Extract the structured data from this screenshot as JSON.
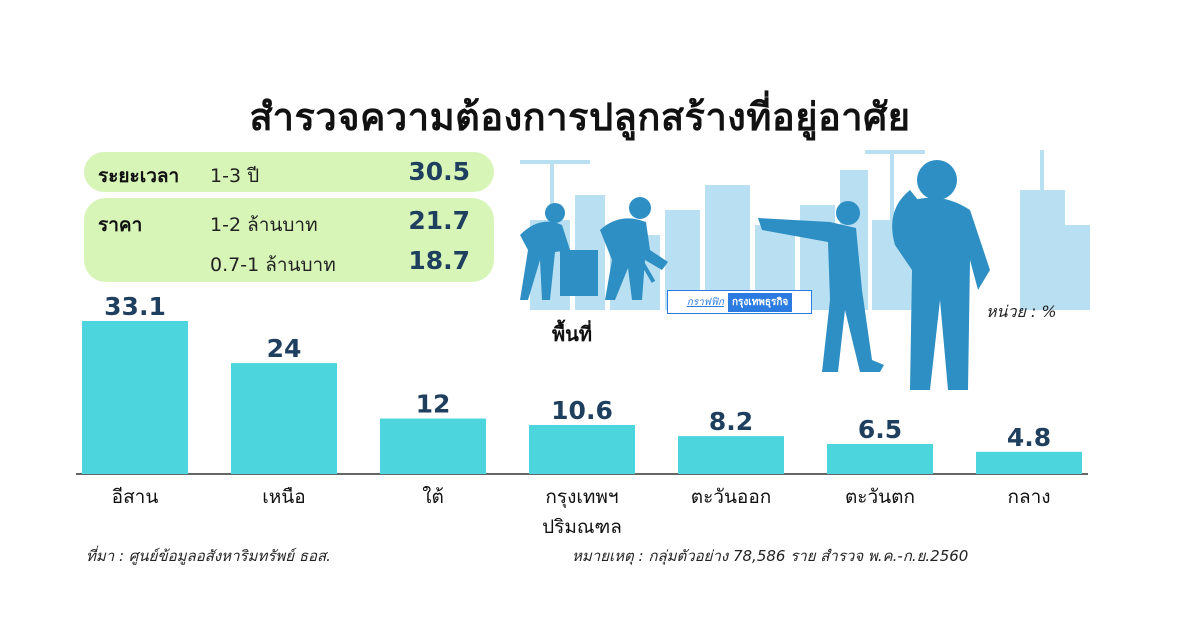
{
  "title": "สำรวจความต้องการปลูกสร้างที่อยู่อาศัย",
  "period": {
    "label": "ระยะเวลา",
    "desc": "1-3 ปี",
    "value": "30.5"
  },
  "price": {
    "label": "ราคา",
    "rows": [
      {
        "desc": "1-2  ล้านบาท",
        "value": "21.7"
      },
      {
        "desc": "0.7-1 ล้านบาท",
        "value": "18.7"
      }
    ]
  },
  "credit": {
    "part1": "กราฟฟิก",
    "part2": "กรุงเทพธุรกิจ"
  },
  "unit_label": "หน่วย : %",
  "chart_data": {
    "type": "bar",
    "xlabel": "พื้นที่",
    "categories": [
      "อีสาน",
      "เหนือ",
      "ใต้",
      "กรุงเทพฯ ปริมณฑล",
      "ตะวันออก",
      "ตะวันตก",
      "กลาง"
    ],
    "values": [
      33.1,
      24,
      12,
      10.6,
      8.2,
      6.5,
      4.8
    ],
    "value_labels": [
      "33.1",
      "24",
      "12",
      "10.6",
      "8.2",
      "6.5",
      "4.8"
    ],
    "ylim": [
      0,
      33.1
    ],
    "bar_color": "#4dd5dd",
    "value_color": "#1f3f5f"
  },
  "colors": {
    "pill": "#d8f5b8",
    "silhouette": "#2e8fc4",
    "city": "#b8dff2"
  },
  "source": "ที่มา : ศูนย์ข้อมูลอสังหาริมทรัพย์ ธอส.",
  "note": "หมายเหตุ : กลุ่มตัวอย่าง 78,586 ราย สำรวจ พ.ค.-ก.ย.2560"
}
